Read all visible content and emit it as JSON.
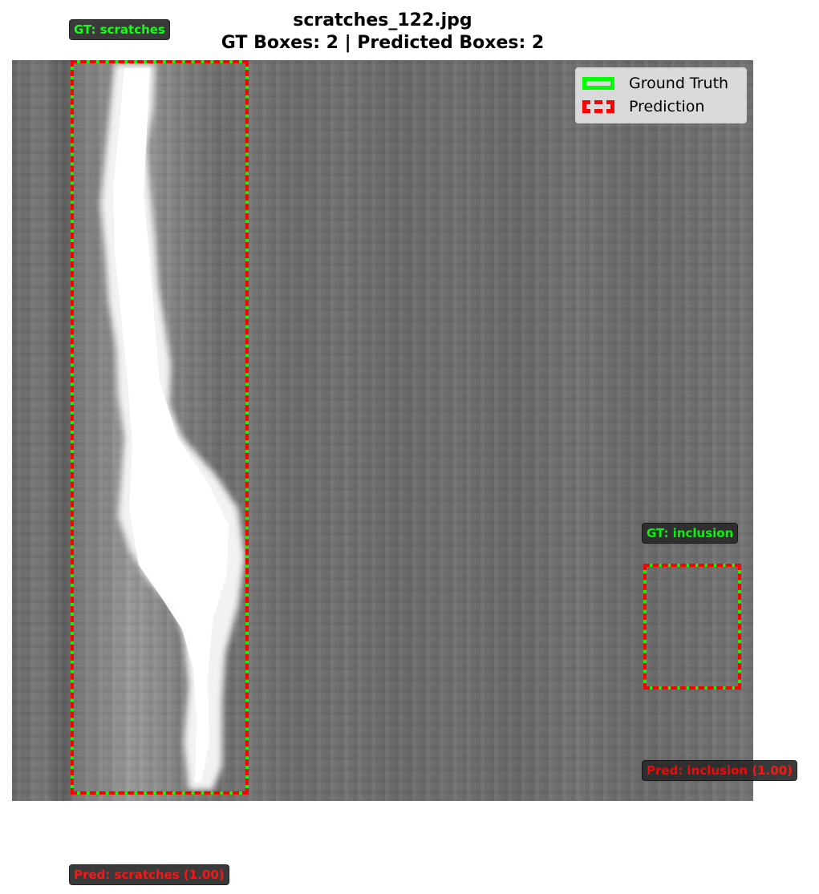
{
  "title": {
    "line1": "scratches_122.jpg",
    "line2": "GT Boxes: 2 | Predicted Boxes: 2"
  },
  "legend": {
    "ground_truth": "Ground Truth",
    "prediction": "Prediction"
  },
  "annotations": [
    {
      "gt_label": "GT: scratches",
      "pred_label": "Pred: scratches (1.00)"
    },
    {
      "gt_label": "GT: inclusion",
      "pred_label": "Pred: inclusion (1.00)"
    }
  ],
  "colors": {
    "ground_truth": "#00ff00",
    "prediction": "#ff0000"
  }
}
